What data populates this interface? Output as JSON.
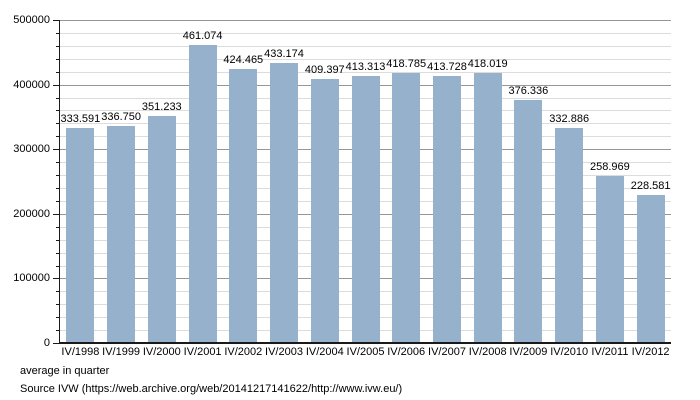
{
  "chart_data": {
    "type": "bar",
    "categories": [
      "IV/1998",
      "IV/1999",
      "IV/2000",
      "IV/2001",
      "IV/2002",
      "IV/2003",
      "IV/2004",
      "IV/2005",
      "IV/2006",
      "IV/2007",
      "IV/2008",
      "IV/2009",
      "IV/2010",
      "IV/2011",
      "IV/2012"
    ],
    "values": [
      333591,
      336750,
      351233,
      461074,
      424465,
      433174,
      409397,
      413313,
      418785,
      413728,
      418019,
      376336,
      332886,
      258969,
      228581
    ],
    "value_labels": [
      "333.591",
      "336.750",
      "351.233",
      "461.074",
      "424.465",
      "433.174",
      "409.397",
      "413.313",
      "418.785",
      "413.728",
      "418.019",
      "376.336",
      "332.886",
      "258.969",
      "228.581"
    ],
    "title": "",
    "xlabel": "",
    "ylabel": "",
    "ylim": [
      0,
      500000
    ],
    "y_major_step": 100000,
    "y_minor_step": 20000,
    "y_tick_labels": [
      "0",
      "100000",
      "200000",
      "300000",
      "400000",
      "500000"
    ],
    "grid": "major-and-minor",
    "legend": "none",
    "bar_color": "#96b1cc",
    "major_grid_color": "#969696",
    "minor_grid_color": "#dcdcdc",
    "axis_color": "#1a1a1a"
  },
  "footer": {
    "note": "average in quarter",
    "source": "Source IVW (https://web.archive.org/web/20141217141622/http://www.ivw.eu/)"
  }
}
